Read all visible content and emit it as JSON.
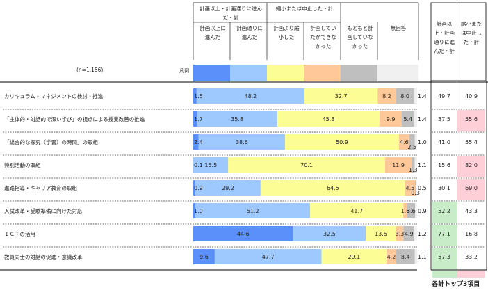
{
  "sample_size_label": "(n=1,156)",
  "legend_label": "凡例",
  "header": {
    "group_left": "計画以上・計画通りに進んだ・計",
    "group_right": "縮小または中止した・計",
    "columns": [
      "計画以上に\n進んだ",
      "計画通りに\n進んだ",
      "計画より縮\n小した",
      "計画してい\nたができな\nかった",
      "もともと計\n画していな\nかった",
      "無回答"
    ],
    "summary_columns": [
      "計画以\n上・計画\n通りに進\nんだ・計",
      "縮小また\nは中止し\nた・計"
    ]
  },
  "footer_note": "各計トップ3項目",
  "colors": {
    "segments": [
      "#5b8ff9",
      "#9ec9ff",
      "#fdfd96",
      "#ffc898",
      "#bfbfbf",
      "#f0f0f0"
    ],
    "highlight_green": "#c8ecc8",
    "highlight_pink": "#ffcfd7"
  },
  "chart_data": {
    "type": "bar",
    "orientation": "horizontal",
    "stacked": true,
    "xlim": [
      0,
      100
    ],
    "series": [
      {
        "name": "計画以上に進んだ"
      },
      {
        "name": "計画通りに進んだ"
      },
      {
        "name": "計画より縮小した"
      },
      {
        "name": "計画していたができなかった"
      },
      {
        "name": "もともと計画していなかった"
      },
      {
        "name": "無回答"
      }
    ],
    "rows": [
      {
        "label": "カリキュラム・マネジメントの検討・推進",
        "values": [
          1.5,
          48.2,
          32.7,
          8.2,
          8.0,
          1.4
        ],
        "value_labels": [
          "1.5",
          "48.2",
          "32.7",
          "8.2",
          "8.0",
          "1.4"
        ],
        "total_done": "49.7",
        "total_cut": "40.9",
        "highlight_done": false,
        "highlight_cut": false
      },
      {
        "label": "「主体的・対話的で深い学び」の視点による授業改善の推進",
        "values": [
          1.7,
          35.8,
          45.8,
          9.9,
          5.4,
          1.4
        ],
        "value_labels": [
          "1.7",
          "35.8",
          "45.8",
          "9.9",
          "5.4",
          "1.4"
        ],
        "total_done": "37.5",
        "total_cut": "55.6",
        "highlight_done": false,
        "highlight_cut": true
      },
      {
        "label": "「総合的な探究（学習）の時間」の取組",
        "values": [
          2.4,
          38.6,
          50.9,
          4.6,
          2.5,
          1.0
        ],
        "value_labels": [
          "2.4",
          "38.6",
          "50.9",
          "4.6",
          "2.5",
          "1.0"
        ],
        "total_done": "41.0",
        "total_cut": "55.4",
        "highlight_done": false,
        "highlight_cut": false
      },
      {
        "label": "特別活動の取組",
        "values": [
          0.1,
          15.5,
          70.1,
          11.9,
          1.3,
          1.1
        ],
        "value_labels": [
          "0.1",
          "15.5",
          "70.1",
          "11.9",
          "1.3",
          "1.1"
        ],
        "total_done": "15.6",
        "total_cut": "82.0",
        "highlight_done": false,
        "highlight_cut": true
      },
      {
        "label": "進路指導・キャリア教育の取組",
        "values": [
          0.9,
          29.2,
          64.5,
          4.5,
          0.3,
          0.5
        ],
        "value_labels": [
          "0.9",
          "29.2",
          "64.5",
          "4.5",
          "0.3",
          "0.5"
        ],
        "total_done": "30.1",
        "total_cut": "69.0",
        "highlight_done": false,
        "highlight_cut": true
      },
      {
        "label": "入試改革・受験準備に向けた対応",
        "values": [
          1.0,
          51.2,
          41.7,
          1.6,
          3.6,
          0.9
        ],
        "value_labels": [
          "1.0",
          "51.2",
          "41.7",
          "1.6",
          "3.6",
          "0.9"
        ],
        "total_done": "52.2",
        "total_cut": "43.3",
        "highlight_done": true,
        "highlight_cut": false
      },
      {
        "label": "ＩＣＴの活用",
        "values": [
          44.6,
          32.5,
          13.5,
          3.3,
          4.9,
          1.2
        ],
        "value_labels": [
          "44.6",
          "32.5",
          "13.5",
          "3.3",
          "4.9",
          "1.2"
        ],
        "total_done": "77.1",
        "total_cut": "16.8",
        "highlight_done": true,
        "highlight_cut": false
      },
      {
        "label": "教員同士の対話の促進・意識改革",
        "values": [
          9.6,
          47.7,
          29.1,
          4.2,
          8.4,
          1.1
        ],
        "value_labels": [
          "9.6",
          "47.7",
          "29.1",
          "4.2",
          "8.4",
          "1.1"
        ],
        "total_done": "57.3",
        "total_cut": "33.2",
        "highlight_done": true,
        "highlight_cut": false
      }
    ]
  }
}
